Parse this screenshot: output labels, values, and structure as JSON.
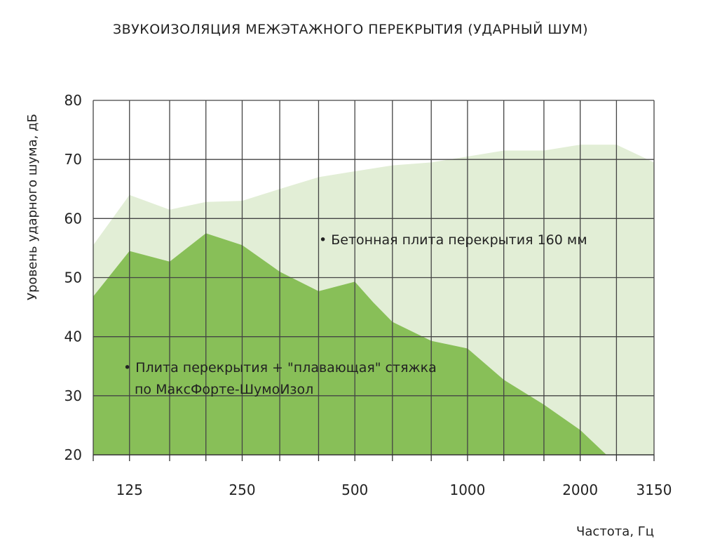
{
  "chart_data": {
    "type": "area",
    "title": "ЗВУКОИЗОЛЯЦИЯ МЕЖЭТАЖНОГО ПЕРЕКРЫТИЯ (УДАРНЫЙ ШУМ)",
    "xlabel": "Частота, Гц",
    "ylabel": "Уровень ударного шума, дБ",
    "ylim": [
      20,
      80
    ],
    "y_ticks": [
      80,
      70,
      60,
      50,
      40,
      30,
      20
    ],
    "x_tick_labels": [
      "125",
      "250",
      "500",
      "1000",
      "2000",
      "3150"
    ],
    "grid": true,
    "series": [
      {
        "name": "• Бетонная плита перекрытия 160 мм",
        "color": "#e2eed6",
        "x": [
          100,
          125,
          160,
          200,
          250,
          315,
          400,
          500,
          630,
          800,
          1000,
          1250,
          1600,
          2000,
          2500,
          3150
        ],
        "values": [
          55.5,
          64,
          61.5,
          62.8,
          63,
          65,
          67,
          68,
          69,
          69.5,
          70.5,
          71.5,
          71.5,
          72.5,
          72.5,
          69.5
        ]
      },
      {
        "name": "• Плита перекрытия + \"плавающая\" стяжка по МаксФорте-ШумоИзол",
        "color": "#88bf58",
        "x": [
          100,
          125,
          160,
          200,
          250,
          315,
          400,
          500,
          560,
          630,
          800,
          1000,
          1250,
          1600,
          2000,
          2350
        ],
        "values": [
          46.8,
          54.5,
          52.7,
          57.5,
          55.5,
          51,
          47.7,
          49.3,
          45.8,
          42.5,
          39.3,
          38,
          32.7,
          28.5,
          24.2,
          20
        ]
      }
    ],
    "annotations": {
      "concrete": "• Бетонная плита перекрытия 160 мм",
      "screed_line1": "• Плита перекрытия + \"плавающая\" стяжка",
      "screed_line2": "по МаксФорте-ШумоИзол"
    }
  }
}
